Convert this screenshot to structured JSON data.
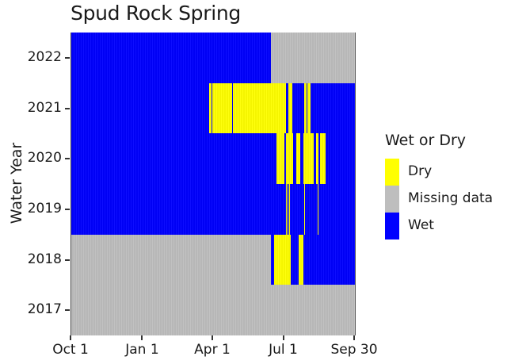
{
  "chart_data": {
    "type": "heatmap",
    "title": "Spud Rock Spring",
    "xlabel": "",
    "ylabel": "Water Year",
    "x_ticks": [
      "Oct 1",
      "Jan 1",
      "Apr 1",
      "Jul 1",
      "Sep 30"
    ],
    "x_tick_days": [
      0,
      92,
      182,
      273,
      364
    ],
    "x_range_days": [
      0,
      365
    ],
    "y_ticks": [
      "2022",
      "2021",
      "2020",
      "2019",
      "2018",
      "2017"
    ],
    "legend": {
      "title": "Wet or Dry",
      "position": "right",
      "entries": [
        {
          "label": "Dry",
          "color": "#ffff00"
        },
        {
          "label": "Missing data",
          "color": "#bebebe"
        },
        {
          "label": "Wet",
          "color": "#0000ff"
        }
      ]
    },
    "rows": [
      {
        "year": "2022",
        "segments": [
          {
            "state": "Wet",
            "start": 0,
            "end": 257
          },
          {
            "state": "Missing data",
            "start": 257,
            "end": 365
          }
        ]
      },
      {
        "year": "2021",
        "segments": [
          {
            "state": "Wet",
            "start": 0,
            "end": 177
          },
          {
            "state": "Dry",
            "start": 177,
            "end": 180
          },
          {
            "state": "Wet",
            "start": 180,
            "end": 181
          },
          {
            "state": "Dry",
            "start": 181,
            "end": 207
          },
          {
            "state": "Wet",
            "start": 207,
            "end": 208
          },
          {
            "state": "Dry",
            "start": 208,
            "end": 276
          },
          {
            "state": "Wet",
            "start": 276,
            "end": 279
          },
          {
            "state": "Dry",
            "start": 279,
            "end": 284
          },
          {
            "state": "Wet",
            "start": 284,
            "end": 300
          },
          {
            "state": "Dry",
            "start": 300,
            "end": 303
          },
          {
            "state": "Wet",
            "start": 303,
            "end": 304
          },
          {
            "state": "Dry",
            "start": 304,
            "end": 308
          },
          {
            "state": "Wet",
            "start": 308,
            "end": 365
          }
        ]
      },
      {
        "year": "2020",
        "segments": [
          {
            "state": "Wet",
            "start": 0,
            "end": 264
          },
          {
            "state": "Dry",
            "start": 264,
            "end": 274
          },
          {
            "state": "Wet",
            "start": 274,
            "end": 276
          },
          {
            "state": "Dry",
            "start": 276,
            "end": 285
          },
          {
            "state": "Wet",
            "start": 285,
            "end": 290
          },
          {
            "state": "Dry",
            "start": 290,
            "end": 295
          },
          {
            "state": "Wet",
            "start": 295,
            "end": 299
          },
          {
            "state": "Dry",
            "start": 299,
            "end": 312
          },
          {
            "state": "Wet",
            "start": 312,
            "end": 315
          },
          {
            "state": "Dry",
            "start": 315,
            "end": 318
          },
          {
            "state": "Wet",
            "start": 318,
            "end": 320
          },
          {
            "state": "Dry",
            "start": 320,
            "end": 327
          },
          {
            "state": "Wet",
            "start": 327,
            "end": 365
          }
        ]
      },
      {
        "year": "2019",
        "segments": [
          {
            "state": "Wet",
            "start": 0,
            "end": 276
          },
          {
            "state": "Dry",
            "start": 276,
            "end": 277
          },
          {
            "state": "Wet",
            "start": 277,
            "end": 278
          },
          {
            "state": "Dry",
            "start": 278,
            "end": 279
          },
          {
            "state": "Wet",
            "start": 279,
            "end": 280
          },
          {
            "state": "Dry",
            "start": 280,
            "end": 281
          },
          {
            "state": "Wet",
            "start": 281,
            "end": 300
          },
          {
            "state": "Dry",
            "start": 300,
            "end": 301
          },
          {
            "state": "Wet",
            "start": 301,
            "end": 317
          },
          {
            "state": "Dry",
            "start": 317,
            "end": 318
          },
          {
            "state": "Wet",
            "start": 318,
            "end": 365
          }
        ]
      },
      {
        "year": "2018",
        "segments": [
          {
            "state": "Missing data",
            "start": 0,
            "end": 257
          },
          {
            "state": "Wet",
            "start": 257,
            "end": 261
          },
          {
            "state": "Dry",
            "start": 261,
            "end": 282
          },
          {
            "state": "Wet",
            "start": 282,
            "end": 293
          },
          {
            "state": "Dry",
            "start": 293,
            "end": 299
          },
          {
            "state": "Wet",
            "start": 299,
            "end": 365
          }
        ]
      },
      {
        "year": "2017",
        "segments": [
          {
            "state": "Missing data",
            "start": 0,
            "end": 365
          }
        ]
      }
    ]
  }
}
